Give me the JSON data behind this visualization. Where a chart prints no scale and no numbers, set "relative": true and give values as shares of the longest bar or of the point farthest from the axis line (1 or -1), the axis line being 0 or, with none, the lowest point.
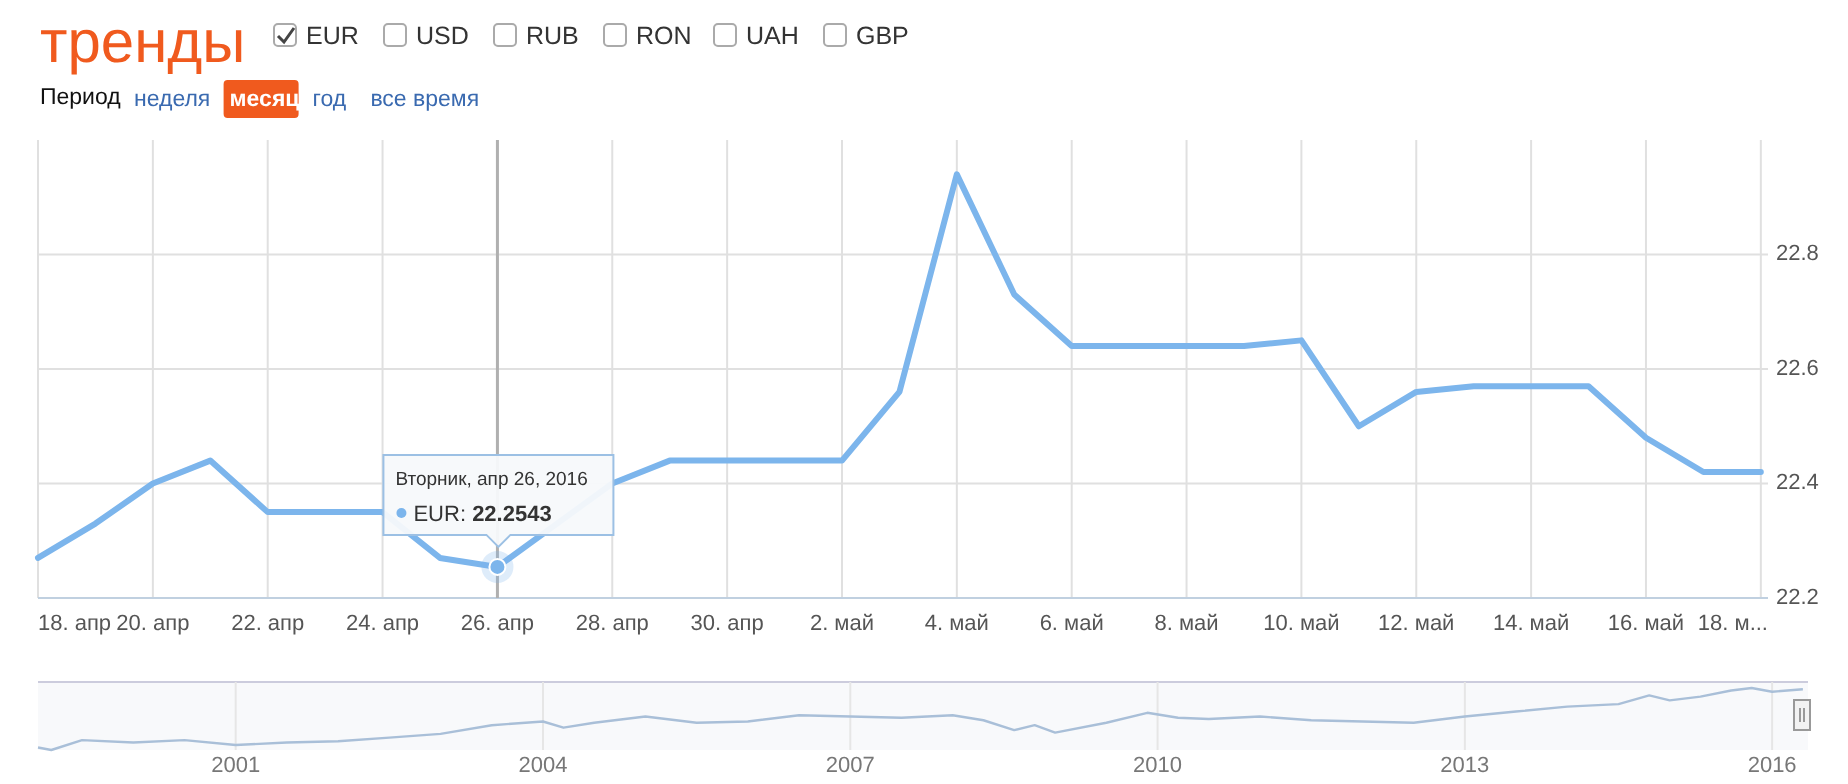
{
  "chart_data": [
    {
      "type": "line",
      "title": "тренды",
      "legend": "top",
      "grid": true,
      "marker": "none",
      "line_style": "solid",
      "x": [
        "2016-04-18",
        "2016-04-19",
        "2016-04-20",
        "2016-04-21",
        "2016-04-22",
        "2016-04-23",
        "2016-04-24",
        "2016-04-25",
        "2016-04-26",
        "2016-04-27",
        "2016-04-28",
        "2016-04-29",
        "2016-04-30",
        "2016-05-01",
        "2016-05-02",
        "2016-05-03",
        "2016-05-04",
        "2016-05-05",
        "2016-05-06",
        "2016-05-07",
        "2016-05-08",
        "2016-05-09",
        "2016-05-10",
        "2016-05-11",
        "2016-05-12",
        "2016-05-13",
        "2016-05-14",
        "2016-05-15",
        "2016-05-16",
        "2016-05-17",
        "2016-05-18"
      ],
      "series": [
        {
          "name": "EUR",
          "color": "#7cb5ec",
          "values": [
            22.27,
            22.33,
            22.4,
            22.44,
            22.35,
            22.35,
            22.35,
            22.27,
            22.2543,
            null,
            22.4,
            22.44,
            22.44,
            22.44,
            22.44,
            22.56,
            22.94,
            22.73,
            22.64,
            22.64,
            22.64,
            22.64,
            22.65,
            22.5,
            22.56,
            22.57,
            22.57,
            22.57,
            22.48,
            22.42,
            22.42
          ]
        }
      ],
      "xlim": [
        "2016-04-18",
        "2016-05-18T03:00"
      ],
      "xticks": [
        {
          "value": "2016-04-18",
          "label": "18. апр"
        },
        {
          "value": "2016-04-20",
          "label": "20. апр"
        },
        {
          "value": "2016-04-22",
          "label": "22. апр"
        },
        {
          "value": "2016-04-24",
          "label": "24. апр"
        },
        {
          "value": "2016-04-26",
          "label": "26. апр"
        },
        {
          "value": "2016-04-28",
          "label": "28. апр"
        },
        {
          "value": "2016-04-30",
          "label": "30. апр"
        },
        {
          "value": "2016-05-02",
          "label": "2. май"
        },
        {
          "value": "2016-05-04",
          "label": "4. май"
        },
        {
          "value": "2016-05-06",
          "label": "6. май"
        },
        {
          "value": "2016-05-08",
          "label": "8. май"
        },
        {
          "value": "2016-05-10",
          "label": "10. май"
        },
        {
          "value": "2016-05-12",
          "label": "12. май"
        },
        {
          "value": "2016-05-14",
          "label": "14. май"
        },
        {
          "value": "2016-05-16",
          "label": "16. май"
        },
        {
          "value": "2016-05-18",
          "label": "18. м..."
        }
      ],
      "ylim": [
        22.2,
        23.0
      ],
      "yticks": [
        22.2,
        22.4,
        22.6,
        22.8
      ],
      "ref_lines": [
        {
          "axis": "x",
          "value": "2016-04-26",
          "color": "#b0b0b0"
        }
      ],
      "annotations": [
        {
          "text": "Вторник, апр 26, 2016\nEUR: 22.2543",
          "x": "2016-04-26",
          "y": 22.2543
        },
        "USD",
        "RUB",
        "RON",
        "UAH",
        "GBP",
        "Период",
        "неделя",
        "месяц",
        "год",
        "все время"
      ]
    },
    {
      "type": "line",
      "relative": true,
      "grid": "x",
      "color": "#a9bfd8",
      "x": [
        1999.07,
        1999.2,
        1999.5,
        2000.0,
        2000.5,
        2001.0,
        2001.5,
        2002.0,
        2002.5,
        2003.0,
        2003.5,
        2004.0,
        2004.2,
        2004.5,
        2005.0,
        2005.5,
        2006.0,
        2006.5,
        2007.0,
        2007.5,
        2008.0,
        2008.3,
        2008.6,
        2008.8,
        2009.0,
        2009.5,
        2009.9,
        2010.2,
        2010.5,
        2011.0,
        2011.5,
        2012.0,
        2012.5,
        2013.0,
        2013.5,
        2014.0,
        2014.5,
        2014.8,
        2015.0,
        2015.3,
        2015.6,
        2015.8,
        2016.0,
        2016.3
      ],
      "values": [
        0.04,
        0,
        0.16,
        0.12,
        0.16,
        0.08,
        0.12,
        0.14,
        0.2,
        0.26,
        0.4,
        0.46,
        0.36,
        0.44,
        0.54,
        0.44,
        0.46,
        0.56,
        0.54,
        0.52,
        0.56,
        0.48,
        0.32,
        0.4,
        0.28,
        0.44,
        0.6,
        0.52,
        0.5,
        0.54,
        0.48,
        0.46,
        0.44,
        0.54,
        0.62,
        0.7,
        0.74,
        0.88,
        0.8,
        0.86,
        0.96,
        1.0,
        0.94,
        0.98
      ],
      "xlim": [
        1999.07,
        2016.35
      ],
      "xticks": [
        2001,
        2004,
        2007,
        2010,
        2013,
        2016
      ]
    }
  ]
}
